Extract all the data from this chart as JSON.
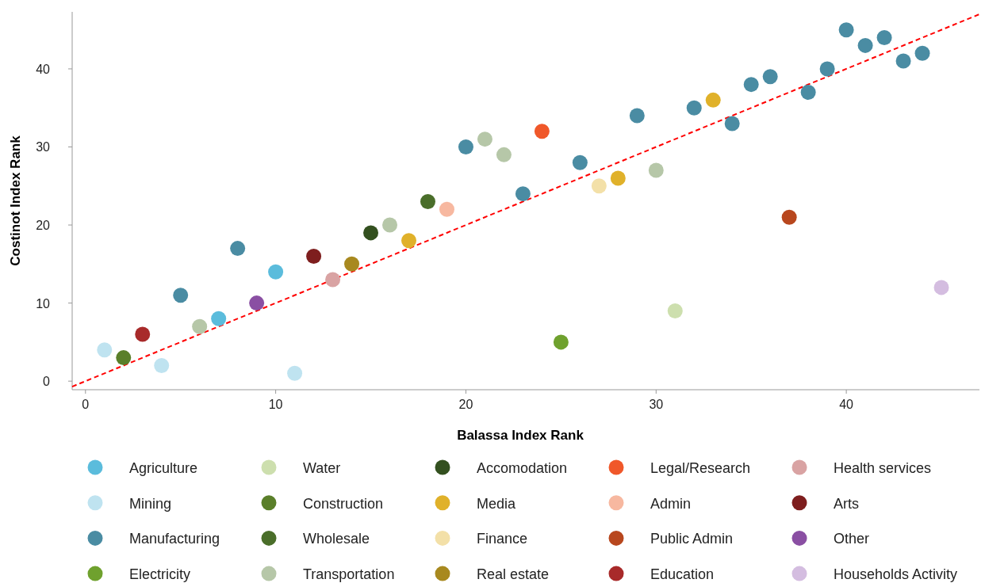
{
  "chart_data": {
    "type": "scatter",
    "xlabel": "Balassa Index Rank",
    "ylabel": "Costinot Index Rank",
    "xlim": [
      -0.7,
      47
    ],
    "ylim": [
      -1.1,
      47.3
    ],
    "xticks": [
      0,
      10,
      20,
      30,
      40
    ],
    "yticks": [
      0,
      10,
      20,
      30,
      40
    ],
    "grid": false,
    "legend": "bottom",
    "marker": "circle",
    "series": [
      {
        "name": "Agriculture",
        "color": "#5bbcdc",
        "x": [
          7,
          10
        ],
        "values": [
          8,
          14
        ]
      },
      {
        "name": "Mining",
        "color": "#bfe3f0",
        "x": [
          1,
          4,
          11
        ],
        "values": [
          4,
          2,
          1
        ]
      },
      {
        "name": "Manufacturing",
        "color": "#4a8ca3",
        "x": [
          5,
          8,
          20,
          23,
          26,
          29,
          32,
          34,
          35,
          36,
          38,
          39,
          40,
          41,
          42,
          43,
          44
        ],
        "values": [
          11,
          17,
          30,
          24,
          28,
          34,
          35,
          33,
          38,
          39,
          37,
          40,
          45,
          43,
          44,
          41,
          42
        ]
      },
      {
        "name": "Electricity",
        "color": "#6fa12e",
        "x": [
          25
        ],
        "values": [
          5
        ]
      },
      {
        "name": "Water",
        "color": "#cddfae",
        "x": [
          31
        ],
        "values": [
          9
        ]
      },
      {
        "name": "Construction",
        "color": "#5a7f2a",
        "x": [
          2
        ],
        "values": [
          3
        ]
      },
      {
        "name": "Wholesale",
        "color": "#4a6e2a",
        "x": [
          18
        ],
        "values": [
          23
        ]
      },
      {
        "name": "Transportation",
        "color": "#b6c7a8",
        "x": [
          6,
          16,
          21,
          22,
          30
        ],
        "values": [
          7,
          20,
          31,
          29,
          27
        ]
      },
      {
        "name": "Accomodation",
        "color": "#33501f",
        "x": [
          15
        ],
        "values": [
          19
        ]
      },
      {
        "name": "Media",
        "color": "#e0b12a",
        "x": [
          17,
          28,
          33
        ],
        "values": [
          18,
          26,
          36
        ]
      },
      {
        "name": "Finance",
        "color": "#f3e0a8",
        "x": [
          27
        ],
        "values": [
          25
        ]
      },
      {
        "name": "Real estate",
        "color": "#a8891f",
        "x": [
          14
        ],
        "values": [
          15
        ]
      },
      {
        "name": "Legal/Research",
        "color": "#f0582a",
        "x": [
          24
        ],
        "values": [
          32
        ]
      },
      {
        "name": "Admin",
        "color": "#f7b8a0",
        "x": [
          19
        ],
        "values": [
          22
        ]
      },
      {
        "name": "Public Admin",
        "color": "#b8471e",
        "x": [
          37
        ],
        "values": [
          21
        ]
      },
      {
        "name": "Education",
        "color": "#a82a2a",
        "x": [
          3
        ],
        "values": [
          6
        ]
      },
      {
        "name": "Health services",
        "color": "#d9a3a3",
        "x": [
          13
        ],
        "values": [
          13
        ]
      },
      {
        "name": "Arts",
        "color": "#7e1e1e",
        "x": [
          12
        ],
        "values": [
          16
        ]
      },
      {
        "name": "Other",
        "color": "#8a4fa3",
        "x": [
          9
        ],
        "values": [
          10
        ]
      },
      {
        "name": "Households Activity",
        "color": "#d4bde0",
        "x": [
          45
        ],
        "values": [
          12
        ]
      },
      {
        "type": "line",
        "color": "#ff0000",
        "line_style": "dashed",
        "marker": "none",
        "x": [
          -0.7,
          47
        ],
        "values": [
          -0.7,
          47
        ]
      }
    ]
  }
}
